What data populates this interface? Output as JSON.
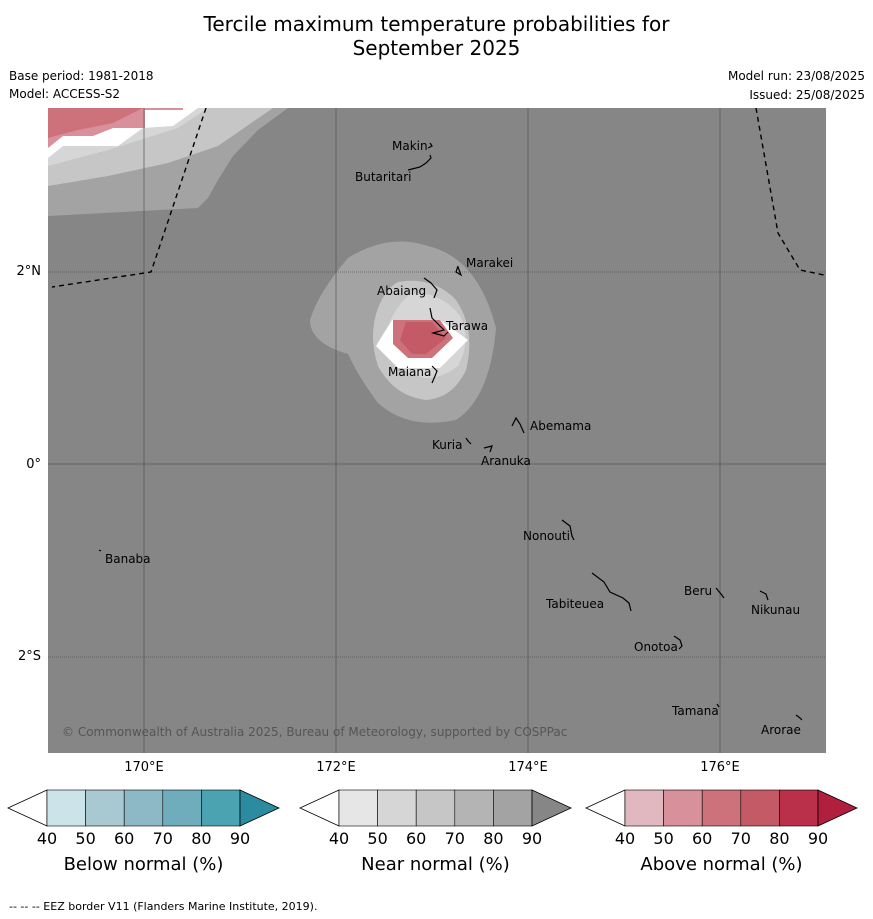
{
  "header": {
    "title_line1": "Tercile maximum temperature probabilities for",
    "title_line2": "September 2025",
    "base_period": "Base period: 1981-2018",
    "model": "Model: ACCESS-S2",
    "model_run": "Model run: 23/08/2025",
    "issued": "Issued: 25/08/2025"
  },
  "map": {
    "lat_labels": [
      "2°N",
      "0°",
      "2°S"
    ],
    "lon_labels": [
      "170°E",
      "172°E",
      "174°E",
      "176°E"
    ],
    "places": [
      "Makin",
      "Butaritari",
      "Marakei",
      "Abaiang",
      "Tarawa",
      "Maiana",
      "Abemama",
      "Kuria",
      "Aranuka",
      "Nonouti",
      "Banaba",
      "Tabiteuea",
      "Beru",
      "Nikunau",
      "Onotoa",
      "Tamana",
      "Arorae"
    ],
    "copyright": "© Commonwealth of Australia 2025, Bureau of Meteorology, supported by COSPPac",
    "background_color": "#868686"
  },
  "colorbars": [
    {
      "label": "Below normal (%)",
      "ticks": [
        "40",
        "50",
        "60",
        "70",
        "80",
        "90"
      ],
      "colors": [
        "#ffffff",
        "#cde3ea",
        "#a8c9d1",
        "#8cb9c5",
        "#6fadbc",
        "#4ba3b2",
        "#2b8ba0"
      ]
    },
    {
      "label": "Near normal (%)",
      "ticks": [
        "40",
        "50",
        "60",
        "70",
        "80",
        "90"
      ],
      "colors": [
        "#ffffff",
        "#e6e6e6",
        "#d6d6d6",
        "#c6c6c6",
        "#b4b4b4",
        "#a3a3a3",
        "#868686"
      ]
    },
    {
      "label": "Above normal (%)",
      "ticks": [
        "40",
        "50",
        "60",
        "70",
        "80",
        "90"
      ],
      "colors": [
        "#ffffff",
        "#e2b8c0",
        "#d8919b",
        "#cd717b",
        "#c55a67",
        "#ba2f4a",
        "#b11f3e"
      ]
    }
  ],
  "footer": "--  --  -- EEZ border V11 (Flanders Marine Institute, 2019)."
}
